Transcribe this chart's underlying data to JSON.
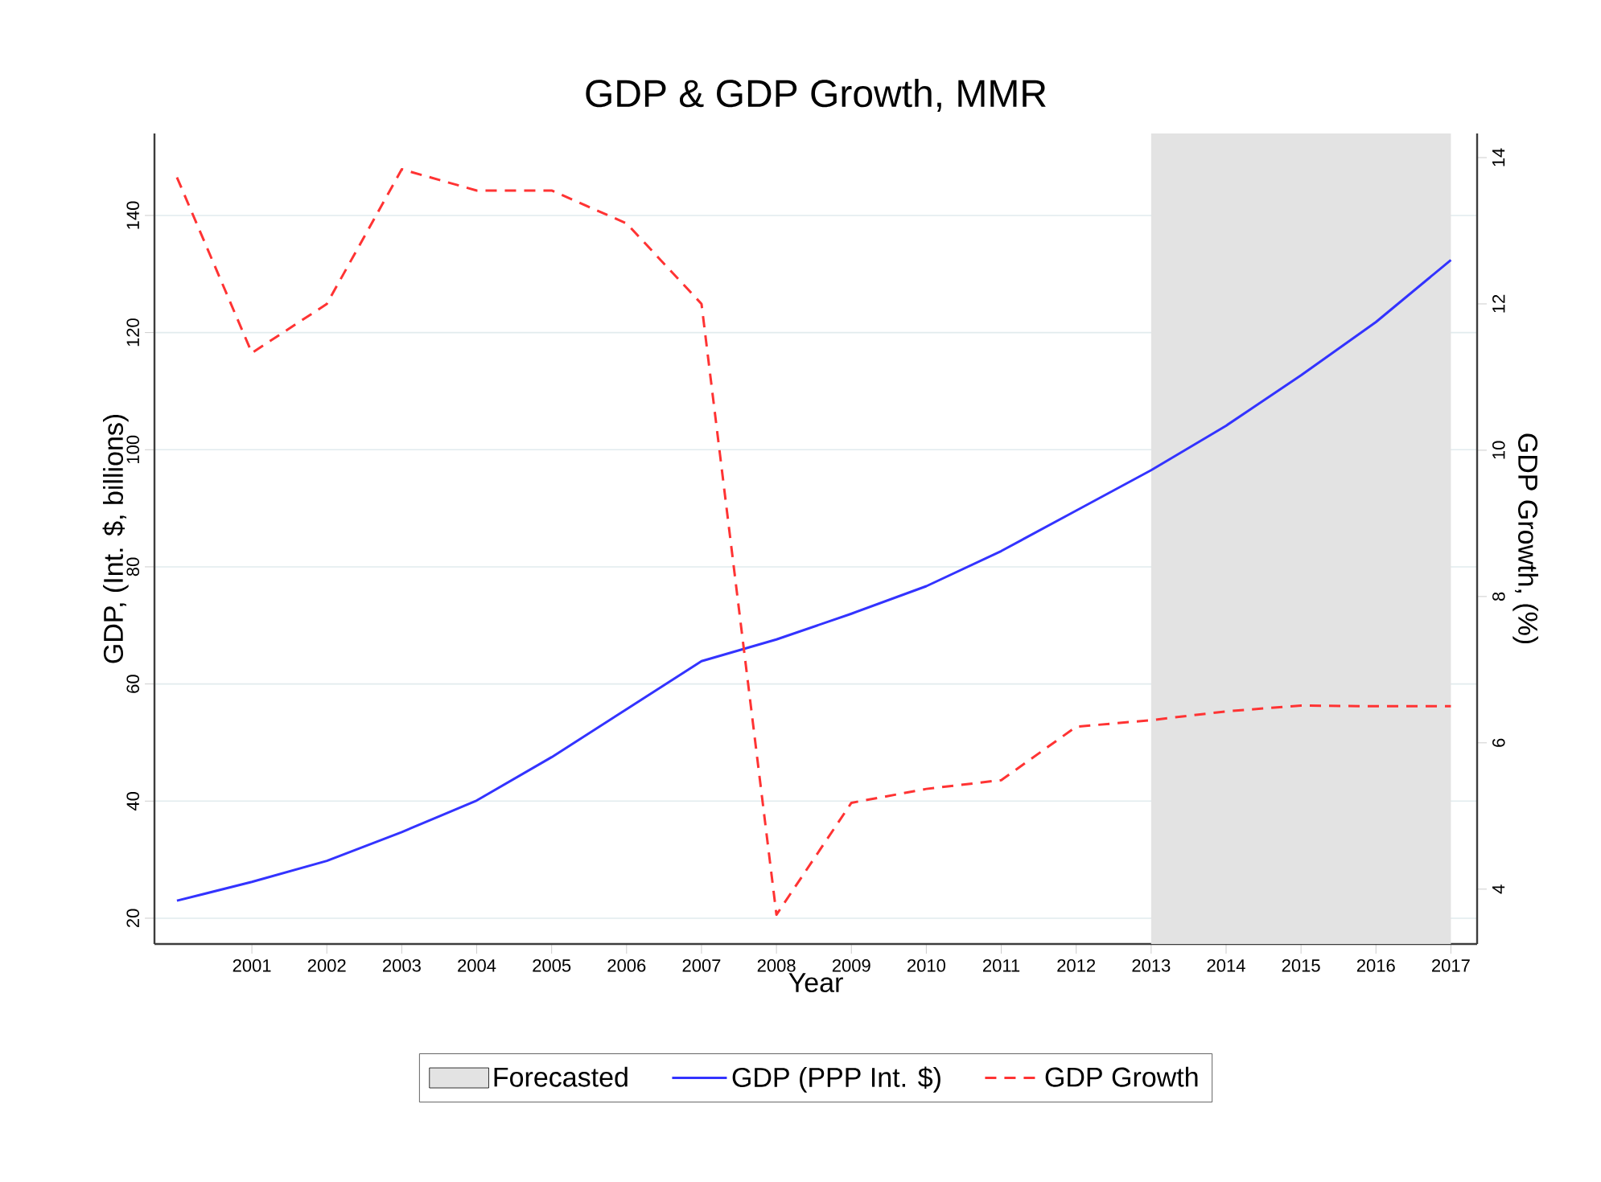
{
  "chart_data": {
    "type": "line",
    "title": "GDP & GDP Growth, MMR",
    "xlabel": "Year",
    "ylabel": "GDP, (Int. $, billions)",
    "y2label": "GDP Growth, (%)",
    "x": [
      2000,
      2001,
      2002,
      2003,
      2004,
      2005,
      2006,
      2007,
      2008,
      2009,
      2010,
      2011,
      2012,
      2013,
      2014,
      2015,
      2016,
      2017
    ],
    "series": [
      {
        "name": "GDP (PPP Int. $)",
        "color": "#3333ff",
        "line_style": "solid",
        "values": [
          23,
          26.2,
          29.8,
          34.7,
          40.1,
          47.5,
          55.7,
          63.9,
          67.6,
          72,
          76.7,
          82.7,
          89.6,
          96.5,
          104.1,
          112.7,
          121.8,
          132.4
        ]
      },
      {
        "name": "GDP Growth",
        "color": "#ff3333",
        "line_style": "dashed",
        "axis": "y2",
        "values": [
          13.73,
          11.33,
          12.0,
          13.84,
          13.55,
          13.55,
          13.1,
          12.0,
          3.65,
          5.18,
          5.37,
          5.49,
          6.22,
          6.31,
          6.43,
          6.51,
          6.5,
          6.5
        ]
      }
    ],
    "xlim": [
      1999.7,
      2017.35
    ],
    "xticks": [
      2001,
      2002,
      2003,
      2004,
      2005,
      2006,
      2007,
      2008,
      2009,
      2010,
      2011,
      2012,
      2013,
      2014,
      2015,
      2016,
      2017
    ],
    "ylim": [
      15.6,
      154
    ],
    "yticks": [
      20,
      40,
      60,
      80,
      100,
      120,
      140
    ],
    "y2lim": [
      3.25,
      14.33
    ],
    "y2ticks": [
      4,
      6,
      8,
      10,
      12,
      14
    ],
    "bands": [
      {
        "axis": "x",
        "from": 2013,
        "to": 2017,
        "label": "Forecasted",
        "color": "#e3e3e3"
      }
    ],
    "grid": "y",
    "legend": "bottom",
    "marker": "none"
  }
}
